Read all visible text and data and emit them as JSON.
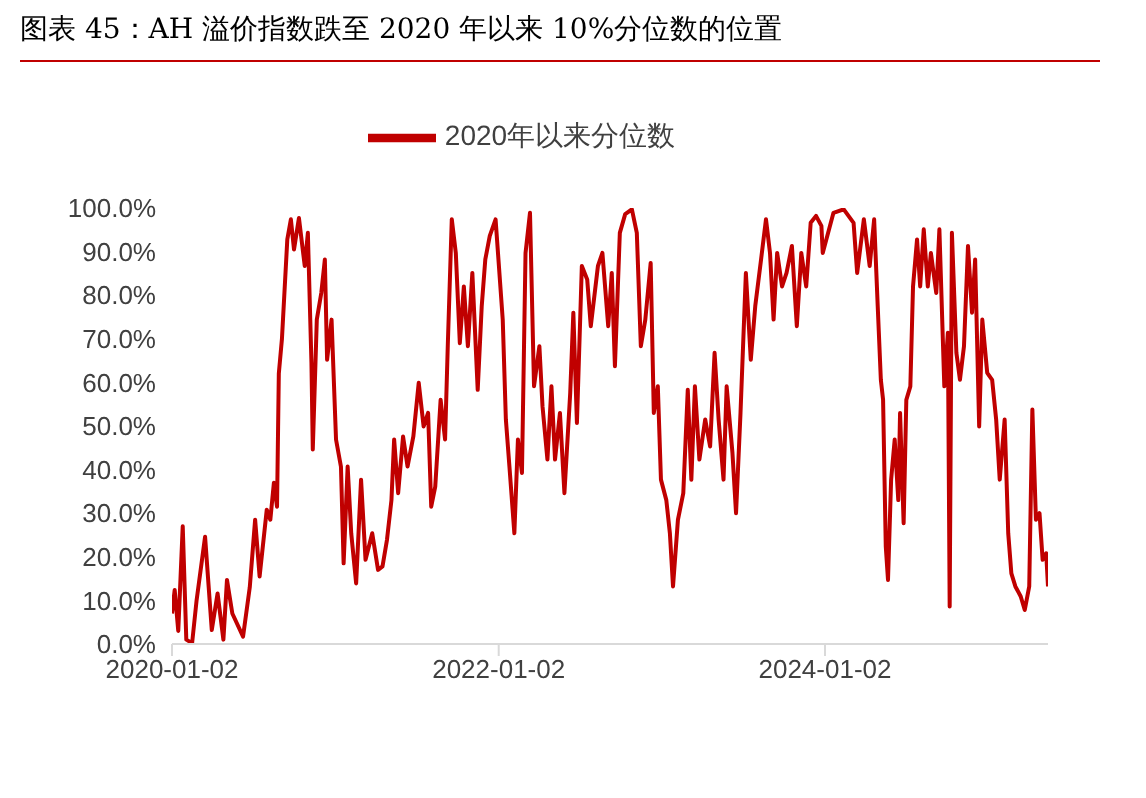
{
  "chart_data": {
    "type": "line",
    "title": "图表 45：AH 溢价指数跌至 2020 年以来 10%分位数的位置",
    "x": [
      "2020-01-02",
      "2020-01-08",
      "2020-01-16",
      "2020-01-26",
      "2020-02-03",
      "2020-02-16",
      "2020-02-26",
      "2020-03-16",
      "2020-03-31",
      "2020-04-13",
      "2020-04-26",
      "2020-05-04",
      "2020-05-16",
      "2020-06-09",
      "2020-06-24",
      "2020-07-06",
      "2020-07-16",
      "2020-08-01",
      "2020-08-09",
      "2020-08-17",
      "2020-08-24",
      "2020-08-28",
      "2020-09-04",
      "2020-09-16",
      "2020-09-24",
      "2020-10-01",
      "2020-10-12",
      "2020-10-25",
      "2020-11-01",
      "2020-11-09",
      "2020-11-12",
      "2020-11-21",
      "2020-12-01",
      "2020-12-09",
      "2020-12-14",
      "2020-12-24",
      "2021-01-03",
      "2021-01-14",
      "2021-01-20",
      "2021-01-29",
      "2021-02-06",
      "2021-02-17",
      "2021-02-28",
      "2021-03-10",
      "2021-03-25",
      "2021-04-07",
      "2021-04-17",
      "2021-04-27",
      "2021-05-07",
      "2021-05-13",
      "2021-05-22",
      "2021-06-02",
      "2021-06-12",
      "2021-06-25",
      "2021-07-07",
      "2021-07-18",
      "2021-07-28",
      "2021-08-04",
      "2021-08-13",
      "2021-08-25",
      "2021-09-04",
      "2021-09-10",
      "2021-09-19",
      "2021-09-28",
      "2021-10-07",
      "2021-10-16",
      "2021-10-25",
      "2021-11-04",
      "2021-11-16",
      "2021-11-25",
      "2021-12-03",
      "2021-12-13",
      "2021-12-26",
      "2022-01-11",
      "2022-01-18",
      "2022-01-26",
      "2022-02-06",
      "2022-02-14",
      "2022-02-23",
      "2022-03-03",
      "2022-03-13",
      "2022-03-22",
      "2022-04-03",
      "2022-04-10",
      "2022-04-21",
      "2022-04-30",
      "2022-05-08",
      "2022-05-19",
      "2022-05-29",
      "2022-06-11",
      "2022-06-18",
      "2022-06-26",
      "2022-07-07",
      "2022-07-19",
      "2022-07-27",
      "2022-08-12",
      "2022-08-22",
      "2022-09-04",
      "2022-09-12",
      "2022-09-19",
      "2022-09-30",
      "2022-10-12",
      "2022-10-27",
      "2022-11-07",
      "2022-11-16",
      "2022-11-26",
      "2022-12-08",
      "2022-12-15",
      "2022-12-24",
      "2022-12-31",
      "2023-01-12",
      "2023-01-20",
      "2023-01-27",
      "2023-02-07",
      "2023-02-19",
      "2023-03-01",
      "2023-03-09",
      "2023-03-17",
      "2023-03-27",
      "2023-04-09",
      "2023-04-20",
      "2023-04-30",
      "2023-05-09",
      "2023-05-20",
      "2023-05-27",
      "2023-06-09",
      "2023-06-17",
      "2023-06-27",
      "2023-07-09",
      "2023-07-20",
      "2023-07-30",
      "2023-08-12",
      "2023-08-23",
      "2023-09-01",
      "2023-09-09",
      "2023-09-17",
      "2023-09-28",
      "2023-10-08",
      "2023-10-20",
      "2023-10-31",
      "2023-11-10",
      "2023-11-21",
      "2023-12-01",
      "2023-12-13",
      "2023-12-25",
      "2023-12-28",
      "2024-01-21",
      "2024-02-13",
      "2024-03-06",
      "2024-03-14",
      "2024-03-29",
      "2024-04-11",
      "2024-04-21",
      "2024-04-29",
      "2024-05-06",
      "2024-05-11",
      "2024-05-17",
      "2024-05-22",
      "2024-05-29",
      "2024-06-06",
      "2024-06-14",
      "2024-06-18",
      "2024-06-26",
      "2024-07-02",
      "2024-07-11",
      "2024-07-17",
      "2024-07-26",
      "2024-08-02",
      "2024-08-10",
      "2024-08-19",
      "2024-08-26",
      "2024-09-07",
      "2024-09-14",
      "2024-09-25",
      "2024-10-03",
      "2024-10-07",
      "2024-10-12",
      "2024-10-22",
      "2024-10-30",
      "2024-11-08",
      "2024-11-17",
      "2024-11-26",
      "2024-12-03",
      "2024-12-12",
      "2024-12-19",
      "2024-12-30",
      "2025-01-10",
      "2025-01-19",
      "2025-01-27",
      "2025-02-07",
      "2025-02-15",
      "2025-02-22",
      "2025-03-03",
      "2025-03-15",
      "2025-03-24",
      "2025-04-03",
      "2025-04-10",
      "2025-04-18",
      "2025-04-26",
      "2025-05-03",
      "2025-05-11",
      "2025-05-15"
    ],
    "series": [
      {
        "name": "2020年以来分位数",
        "color": "#c00000",
        "values": [
          7,
          12.4,
          3,
          27,
          1,
          0.2,
          10,
          24.6,
          3.2,
          11.6,
          1,
          14.7,
          7,
          1.7,
          13,
          28.5,
          15.5,
          30.8,
          28.5,
          37,
          31.5,
          62,
          70,
          92.8,
          97.4,
          90.5,
          97.7,
          86.7,
          94.3,
          64.5,
          44.6,
          74.4,
          80.5,
          88.2,
          65.2,
          74.4,
          46.9,
          40.7,
          18.5,
          40.7,
          25.4,
          13.9,
          37.7,
          19.3,
          25.4,
          17,
          17.8,
          23.9,
          33,
          46.9,
          34.6,
          47.6,
          40.7,
          47.6,
          59.9,
          49.9,
          53,
          31.5,
          36.1,
          56,
          46.9,
          68.3,
          97.4,
          89.7,
          69,
          82,
          68.3,
          85.1,
          58.3,
          77.5,
          88.2,
          93.6,
          97.4,
          74.4,
          51.5,
          40.7,
          25.4,
          46.9,
          39.2,
          89.7,
          98.9,
          59.1,
          68.3,
          54.5,
          42.3,
          59.1,
          42.3,
          53,
          34.6,
          57.6,
          76,
          50.7,
          86.7,
          83.6,
          72.9,
          86.7,
          89.7,
          72.9,
          85.1,
          63.7,
          94.3,
          98.6,
          99.7,
          94.3,
          68.3,
          74.4,
          87.4,
          53,
          59.1,
          37.7,
          33,
          25.4,
          13.2,
          28.5,
          34.6,
          58.3,
          37.7,
          59.1,
          42.3,
          51.5,
          45.3,
          66.8,
          51.5,
          37.7,
          59.1,
          43.8,
          30,
          53,
          85.1,
          65.2,
          77.5,
          88.2,
          97.4,
          89.7,
          74.4,
          89.7,
          82,
          85.1,
          91.3,
          72.9,
          89.7,
          82,
          96.6,
          98.2,
          95.9,
          89.7,
          98.9,
          99.7,
          96.6,
          85.1,
          97.4,
          86.7,
          97.4,
          77.5,
          60.6,
          56,
          22.4,
          14.7,
          37.7,
          46.9,
          33,
          53,
          27.7,
          56,
          59.1,
          82,
          92.8,
          82,
          95.1,
          82,
          89.7,
          80.5,
          95.1,
          59.1,
          71.4,
          8.6,
          94.3,
          66.8,
          60.6,
          68.3,
          91.3,
          76,
          88.2,
          49.9,
          74.4,
          62.2,
          60.6,
          51.5,
          37.7,
          51.5,
          25.4,
          16.2,
          13.2,
          10.9,
          7.8,
          13.2,
          53.8,
          28.5,
          30,
          19.3,
          20.8,
          13.2
        ]
      }
    ],
    "xlim": [
      "2020-01-02",
      "2025-05-15"
    ],
    "xticks": [
      {
        "value": "2020-01-02",
        "label": "2020-01-02"
      },
      {
        "value": "2022-01-02",
        "label": "2022-01-02"
      },
      {
        "value": "2024-01-02",
        "label": "2024-01-02"
      }
    ],
    "ylim": [
      0,
      100
    ],
    "yticks": [
      {
        "value": 0,
        "label": "0.0%"
      },
      {
        "value": 10,
        "label": "10.0%"
      },
      {
        "value": 20,
        "label": "20.0%"
      },
      {
        "value": 30,
        "label": "30.0%"
      },
      {
        "value": 40,
        "label": "40.0%"
      },
      {
        "value": 50,
        "label": "50.0%"
      },
      {
        "value": 60,
        "label": "60.0%"
      },
      {
        "value": 70,
        "label": "70.0%"
      },
      {
        "value": 80,
        "label": "80.0%"
      },
      {
        "value": 90,
        "label": "90.0%"
      },
      {
        "value": 100,
        "label": "100.0%"
      }
    ],
    "grid": false,
    "legend": "top",
    "marker": "none",
    "line_style": "solid"
  }
}
